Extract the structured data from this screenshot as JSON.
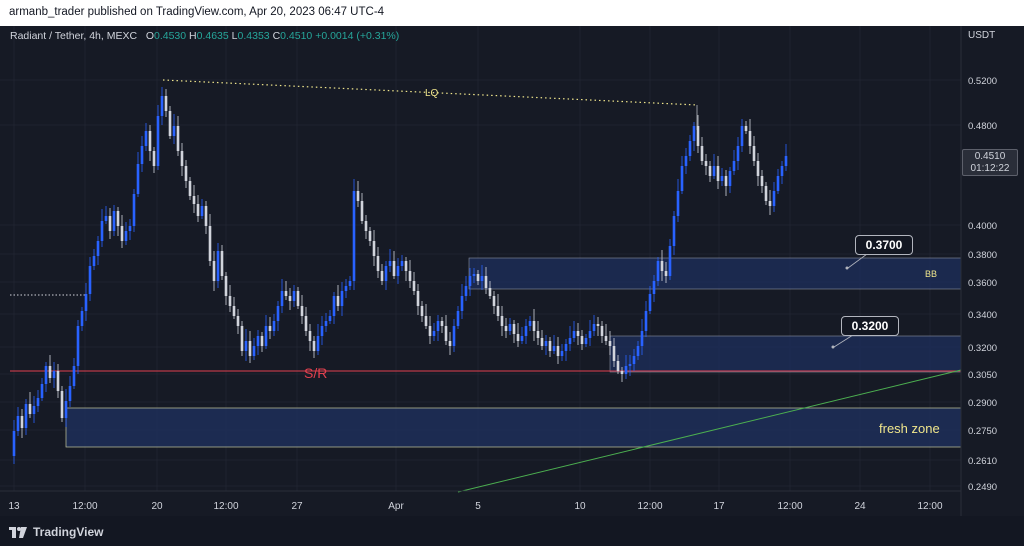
{
  "header": {
    "publish_text": "armanb_trader published on TradingView.com, Apr 20, 2023 06:47 UTC-4"
  },
  "legend": {
    "symbol": "Radiant / Tether, 4h, MEXC",
    "o_label": "O",
    "o_value": "0.4530",
    "h_label": "H",
    "h_value": "0.4635",
    "l_label": "L",
    "l_value": "0.4353",
    "c_label": "C",
    "c_value": "0.4510",
    "change": "+0.0014 (+0.31%)"
  },
  "price_axis": {
    "currency": "USDT",
    "ticks": [
      "0.5200",
      "0.4800",
      "0.4000",
      "0.3800",
      "0.3600",
      "0.3400",
      "0.3200",
      "0.3050",
      "0.2900",
      "0.2750",
      "0.2610",
      "0.2490"
    ]
  },
  "time_axis": {
    "ticks": [
      "13",
      "12:00",
      "20",
      "12:00",
      "27",
      "Apr",
      "5",
      "10",
      "12:00",
      "17",
      "12:00",
      "24",
      "12:00"
    ]
  },
  "last_price": {
    "price": "0.4510",
    "countdown": "01:12:22"
  },
  "annotations": {
    "lq_label": "LQ",
    "sr_label": "S/R",
    "bb_label": "BB",
    "fresh_zone_label": "fresh zone",
    "callout_upper": "0.3700",
    "callout_lower": "0.3200"
  },
  "colors": {
    "background": "#161a25",
    "candle_up": "#2962ff",
    "candle_down": "#d1d4dc",
    "zone_fill": "#1e2f5c",
    "sr_line": "#e0404e",
    "trendline": "#4caf50",
    "lq_line": "#f0e68c",
    "fresh_zone_text": "#f0e68c"
  },
  "footer": {
    "brand": "TradingView"
  }
}
